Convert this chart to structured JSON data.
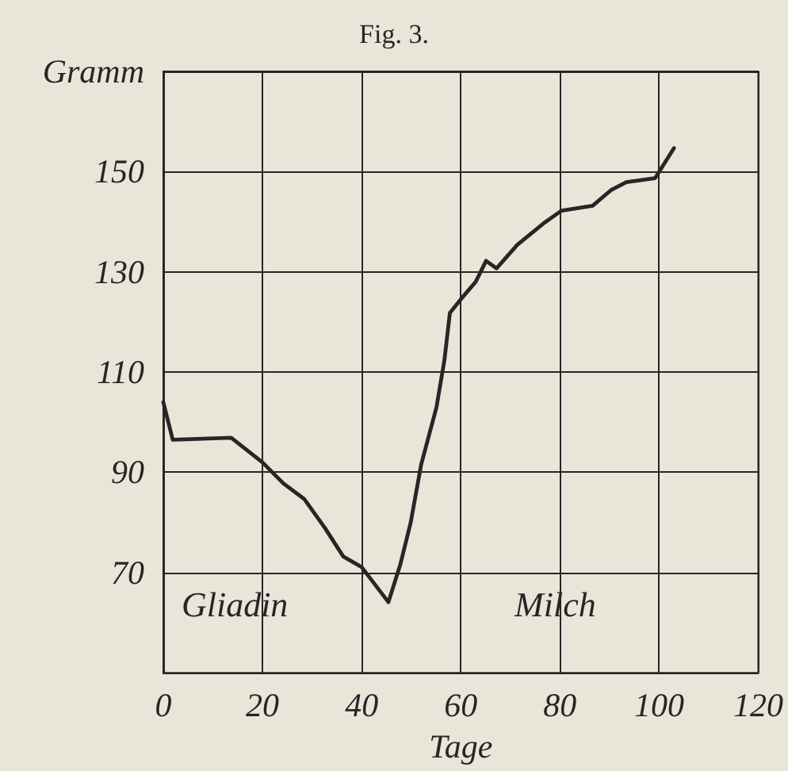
{
  "chart_data": {
    "type": "line",
    "title": "Fig. 3.",
    "xlabel": "Tage",
    "ylabel": "Gramm",
    "annotations": [
      "Gliadin",
      "Milch"
    ],
    "x": [
      0,
      1.9,
      13.7,
      20,
      24.2,
      28.4,
      32.6,
      36.3,
      40,
      45.4,
      47.8,
      49.9,
      52,
      55.1,
      56.7,
      57.8,
      60.4,
      63,
      65.1,
      67.2,
      71.4,
      76.6,
      80.3,
      86.6,
      90.3,
      93.4,
      99.2,
      103
    ],
    "series": [
      {
        "color": "#262626",
        "values": [
          104,
          96.5,
          96.9,
          92,
          87.8,
          84.7,
          78.9,
          73.2,
          71.1,
          64.1,
          71.6,
          80,
          91.5,
          103,
          112.4,
          121.8,
          125,
          128,
          132.2,
          130.7,
          135.4,
          139.6,
          142.2,
          143.2,
          146.3,
          147.9,
          148.7,
          154.7
        ]
      }
    ],
    "xlim": [
      0,
      120
    ],
    "xticks": [
      0,
      20,
      40,
      60,
      80,
      100,
      120
    ],
    "ylim": [
      50,
      170
    ],
    "yticks": [
      {
        "value": 50,
        "label": null
      },
      70,
      90,
      110,
      130,
      150,
      {
        "value": 170,
        "label": null
      }
    ],
    "grid": true,
    "marker": "none",
    "line_style": "solid"
  }
}
